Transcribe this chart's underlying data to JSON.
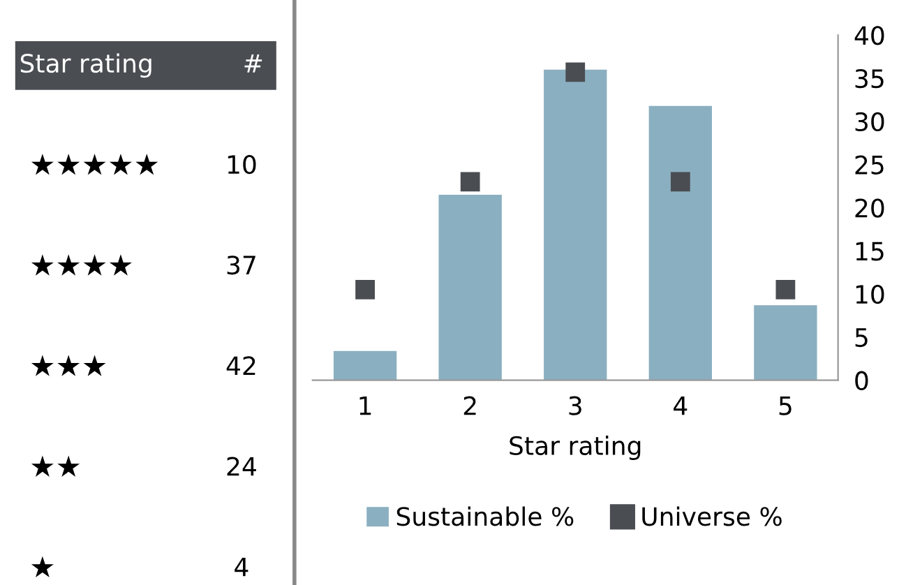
{
  "chart_data": [
    {
      "type": "other",
      "annotations": [
        "Star rating",
        "#",
        "★★★★★",
        "10",
        "★★★★",
        "37",
        "★★★",
        "42",
        "★★",
        "24",
        "★",
        "4"
      ]
    },
    {
      "type": "bar",
      "xlabel": "Star rating",
      "categories": [
        "1",
        "2",
        "3",
        "4",
        "5"
      ],
      "series": [
        {
          "name": "Sustainable %",
          "type": "bar",
          "color": "#8aafc0",
          "values": [
            3.4,
            21.5,
            36.0,
            31.8,
            8.7
          ]
        },
        {
          "name": "Universe %",
          "type": "scatter",
          "color": "#4a4d52",
          "marker": "square",
          "values": [
            10.5,
            23.0,
            35.7,
            23.0,
            10.5
          ]
        }
      ],
      "ylim": [
        0,
        40
      ],
      "yticks": [
        0,
        5,
        10,
        15,
        20,
        25,
        30,
        35,
        40
      ],
      "grid": false,
      "legend": "bottom"
    }
  ]
}
